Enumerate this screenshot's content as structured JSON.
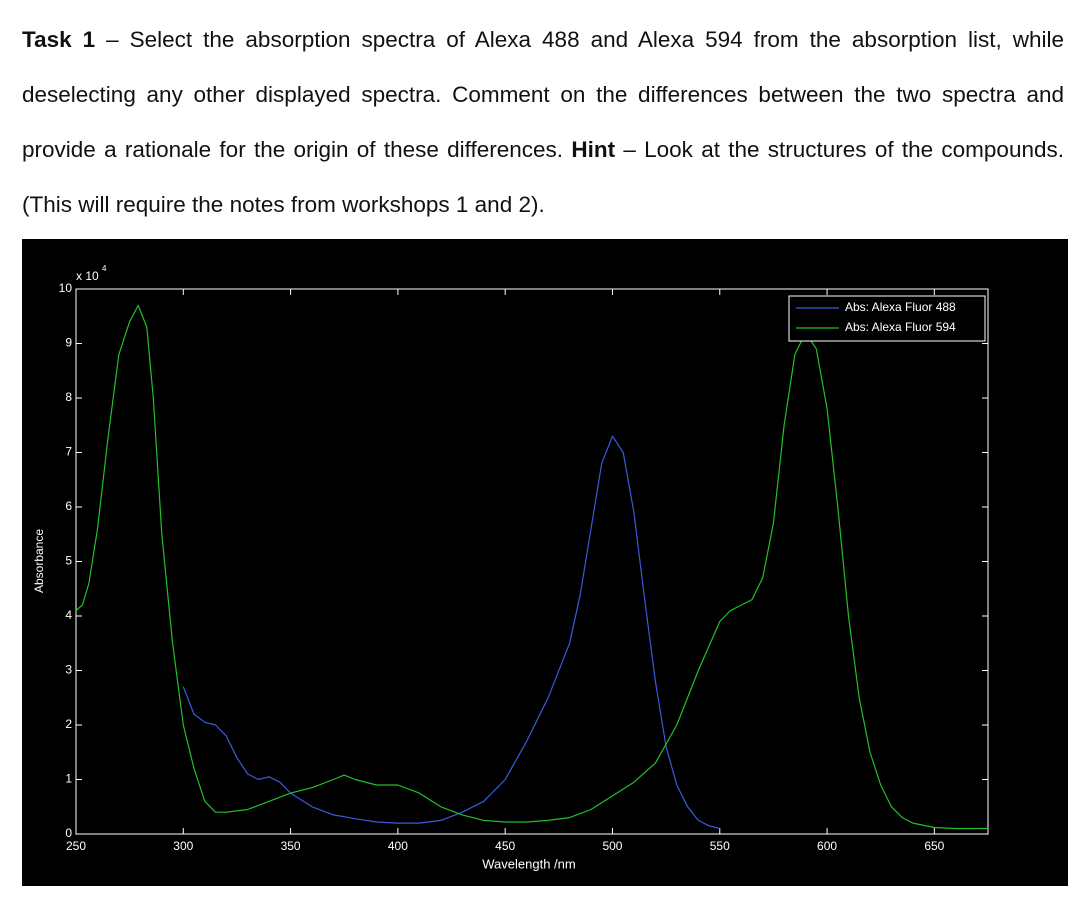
{
  "task": {
    "label": "Task 1",
    "text": "– Select the absorption spectra of Alexa 488 and Alexa 594 from the absorption list, while deselecting any other displayed spectra. Comment on the differences between the two spectra and provide a rationale for the origin of these differences.",
    "hint_label": "Hint",
    "hint_text": "– Look at the structures of the compounds. (This will require the notes from workshops 1 and 2)."
  },
  "chart_data": {
    "type": "line",
    "x_label": "Wavelength /nm",
    "y_label": "Absorbance",
    "y_multiplier": "x 10",
    "y_multiplier_exponent": "4",
    "xlim": [
      250,
      675
    ],
    "ylim": [
      0,
      10
    ],
    "xticks": [
      250,
      300,
      350,
      400,
      450,
      500,
      550,
      600,
      650
    ],
    "yticks": [
      0,
      1,
      2,
      3,
      4,
      5,
      6,
      7,
      8,
      9,
      10
    ],
    "legend": "upper right",
    "series": [
      {
        "name": "Abs: Alexa Fluor 488",
        "color": "#3b5bdb",
        "x": [
          300,
          305,
          310,
          315,
          320,
          325,
          330,
          335,
          340,
          345,
          350,
          360,
          370,
          380,
          390,
          400,
          410,
          420,
          430,
          440,
          450,
          460,
          470,
          480,
          485,
          490,
          495,
          500,
          505,
          510,
          515,
          520,
          525,
          530,
          535,
          540,
          545,
          550
        ],
        "values": [
          2.7,
          2.2,
          2.05,
          2.0,
          1.8,
          1.4,
          1.1,
          1.0,
          1.05,
          0.95,
          0.75,
          0.5,
          0.35,
          0.28,
          0.22,
          0.2,
          0.2,
          0.25,
          0.4,
          0.6,
          1.0,
          1.7,
          2.5,
          3.5,
          4.4,
          5.6,
          6.8,
          7.3,
          7.0,
          5.9,
          4.3,
          2.8,
          1.6,
          0.9,
          0.5,
          0.25,
          0.15,
          0.1
        ]
      },
      {
        "name": "Abs: Alexa Fluor 594",
        "color": "#22c02a",
        "x": [
          250,
          253,
          256,
          260,
          265,
          270,
          275,
          279,
          283,
          286,
          290,
          295,
          300,
          305,
          310,
          315,
          320,
          330,
          340,
          350,
          360,
          370,
          375,
          380,
          390,
          400,
          410,
          420,
          430,
          440,
          450,
          460,
          470,
          480,
          490,
          500,
          510,
          520,
          530,
          540,
          550,
          555,
          560,
          565,
          570,
          575,
          580,
          585,
          590,
          595,
          600,
          605,
          610,
          615,
          620,
          625,
          630,
          635,
          640,
          650,
          660,
          675
        ],
        "values": [
          4.1,
          4.2,
          4.6,
          5.6,
          7.3,
          8.8,
          9.4,
          9.7,
          9.3,
          8.0,
          5.5,
          3.5,
          2.0,
          1.2,
          0.6,
          0.4,
          0.4,
          0.45,
          0.6,
          0.75,
          0.85,
          1.0,
          1.08,
          1.0,
          0.9,
          0.9,
          0.75,
          0.5,
          0.35,
          0.25,
          0.22,
          0.22,
          0.25,
          0.3,
          0.45,
          0.7,
          0.95,
          1.3,
          2.0,
          3.0,
          3.9,
          4.1,
          4.2,
          4.3,
          4.7,
          5.7,
          7.5,
          8.8,
          9.2,
          8.9,
          7.8,
          6.0,
          4.0,
          2.5,
          1.5,
          0.9,
          0.5,
          0.3,
          0.2,
          0.12,
          0.1,
          0.1
        ]
      }
    ]
  }
}
